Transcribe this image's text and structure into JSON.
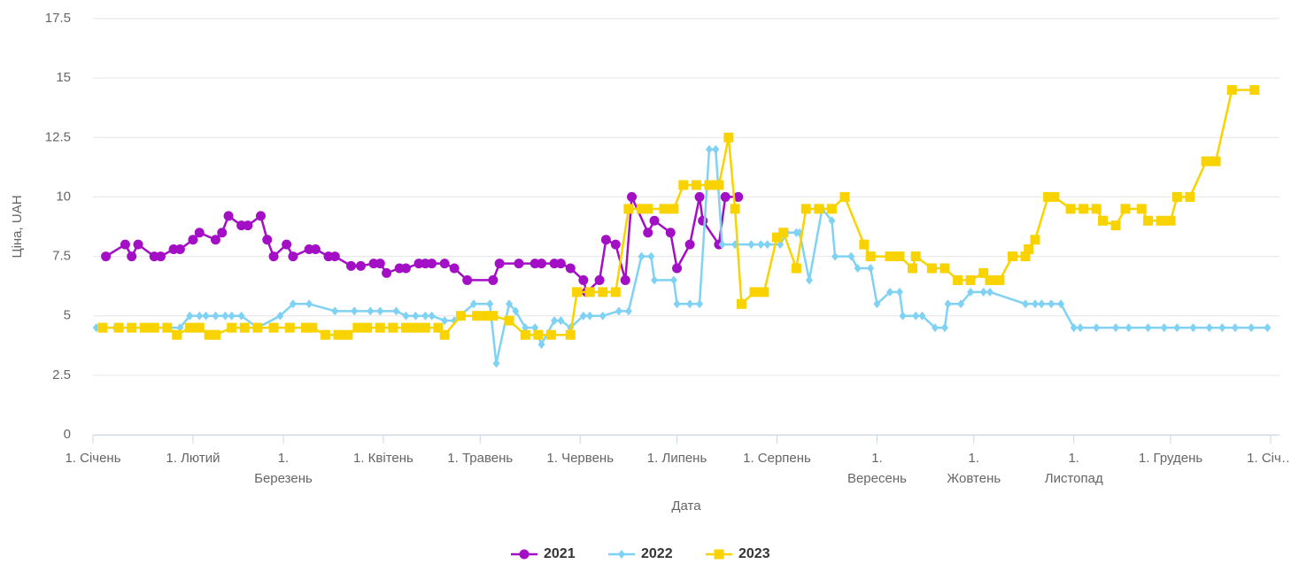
{
  "chart_data": {
    "type": "line",
    "y_label": "Ціна, UAH",
    "x_label": "Дата",
    "xlim": [
      0,
      365
    ],
    "ylim": [
      0,
      17.5
    ],
    "yticks": [
      0,
      2.5,
      5,
      7.5,
      10,
      12.5,
      15,
      17.5
    ],
    "xticks": [
      {
        "value": 0,
        "label": "1. Січень"
      },
      {
        "value": 31,
        "label": "1. Лютий"
      },
      {
        "value": 59,
        "label": "1.\nБерезень"
      },
      {
        "value": 90,
        "label": "1. Квітень"
      },
      {
        "value": 120,
        "label": "1. Травень"
      },
      {
        "value": 151,
        "label": "1. Червень"
      },
      {
        "value": 181,
        "label": "1. Липень"
      },
      {
        "value": 212,
        "label": "1. Серпень"
      },
      {
        "value": 243,
        "label": "1.\nВересень"
      },
      {
        "value": 273,
        "label": "1.\nЖовтень"
      },
      {
        "value": 304,
        "label": "1.\nЛистопад"
      },
      {
        "value": 334,
        "label": "1. Грудень"
      },
      {
        "value": 365,
        "label": "1. Січ…"
      }
    ],
    "grid": true,
    "legend": "bottom",
    "series": [
      {
        "name": "2021",
        "color": "#a30fc4",
        "marker": "circle",
        "x": [
          4,
          10,
          12,
          14,
          19,
          21,
          25,
          27,
          31,
          33,
          38,
          40,
          42,
          46,
          48,
          52,
          54,
          56,
          60,
          62,
          67,
          69,
          73,
          75,
          80,
          83,
          87,
          89,
          91,
          95,
          97,
          101,
          103,
          105,
          109,
          112,
          116,
          124,
          126,
          132,
          137,
          139,
          143,
          145,
          148,
          152,
          153,
          157,
          159,
          162,
          165,
          167,
          172,
          174,
          179,
          181,
          185,
          188,
          189,
          194,
          196,
          200
        ],
        "values": [
          7.5,
          8,
          7.5,
          8,
          7.5,
          7.5,
          7.8,
          7.8,
          8.2,
          8.5,
          8.2,
          8.5,
          9.2,
          8.8,
          8.8,
          9.2,
          8.2,
          7.5,
          8,
          7.5,
          7.8,
          7.8,
          7.5,
          7.5,
          7.1,
          7.1,
          7.2,
          7.2,
          6.8,
          7,
          7,
          7.2,
          7.2,
          7.2,
          7.2,
          7,
          6.5,
          6.5,
          7.2,
          7.2,
          7.2,
          7.2,
          7.2,
          7.2,
          7,
          6.5,
          6,
          6.5,
          8.2,
          8,
          6.5,
          10,
          8.5,
          9,
          8.5,
          7,
          8,
          10,
          9,
          8,
          10,
          10
        ]
      },
      {
        "name": "2022",
        "color": "#7fd2f4",
        "marker": "diamond",
        "x": [
          1,
          7,
          12,
          18,
          23,
          27,
          30,
          33,
          35,
          38,
          41,
          43,
          46,
          51,
          58,
          62,
          67,
          75,
          81,
          86,
          89,
          94,
          97,
          100,
          103,
          105,
          109,
          112,
          118,
          123,
          125,
          129,
          131,
          134,
          137,
          139,
          143,
          145,
          148,
          152,
          154,
          158,
          163,
          166,
          170,
          173,
          174,
          180,
          181,
          185,
          188,
          191,
          193,
          195,
          199,
          204,
          207,
          209,
          213,
          215,
          218,
          219,
          222,
          226,
          229,
          230,
          235,
          237,
          241,
          243,
          247,
          250,
          251,
          255,
          257,
          261,
          264,
          265,
          269,
          272,
          276,
          278,
          289,
          292,
          294,
          297,
          300,
          304,
          306,
          311,
          317,
          321,
          327,
          332,
          336,
          341,
          346,
          350,
          354,
          359,
          364
        ],
        "values": [
          4.5,
          4.5,
          4.5,
          4.5,
          4.5,
          4.5,
          5,
          5,
          5,
          5,
          5,
          5,
          5,
          4.5,
          5,
          5.5,
          5.5,
          5.2,
          5.2,
          5.2,
          5.2,
          5.2,
          5,
          5,
          5,
          5,
          4.8,
          4.8,
          5.5,
          5.5,
          3,
          5.5,
          5.2,
          4.5,
          4.5,
          3.8,
          4.8,
          4.8,
          4.5,
          5,
          5,
          5,
          5.2,
          5.2,
          7.5,
          7.5,
          6.5,
          6.5,
          5.5,
          5.5,
          5.5,
          12,
          12,
          8,
          8,
          8,
          8,
          8,
          8,
          8.5,
          8.5,
          8.5,
          6.5,
          9.5,
          9,
          7.5,
          7.5,
          7,
          7,
          5.5,
          6,
          6,
          5,
          5,
          5,
          4.5,
          4.5,
          5.5,
          5.5,
          6,
          6,
          6,
          5.5,
          5.5,
          5.5,
          5.5,
          5.5,
          4.5,
          4.5,
          4.5,
          4.5,
          4.5,
          4.5,
          4.5,
          4.5,
          4.5,
          4.5,
          4.5,
          4.5,
          4.5,
          4.5
        ]
      },
      {
        "name": "2023",
        "color": "#f9d300",
        "marker": "square",
        "x": [
          3,
          8,
          12,
          16,
          19,
          23,
          26,
          30,
          33,
          36,
          38,
          43,
          47,
          51,
          56,
          61,
          66,
          68,
          72,
          76,
          79,
          82,
          85,
          89,
          93,
          97,
          100,
          103,
          107,
          109,
          114,
          119,
          122,
          124,
          129,
          134,
          138,
          142,
          148,
          150,
          154,
          158,
          162,
          166,
          170,
          172,
          177,
          180,
          183,
          187,
          191,
          194,
          197,
          199,
          201,
          205,
          208,
          212,
          214,
          218,
          221,
          225,
          229,
          233,
          239,
          241,
          247,
          250,
          254,
          255,
          260,
          264,
          268,
          272,
          276,
          278,
          281,
          285,
          289,
          290,
          292,
          296,
          298,
          303,
          307,
          311,
          313,
          317,
          320,
          325,
          327,
          331,
          334,
          336,
          340,
          345,
          348,
          353,
          360
        ],
        "values": [
          4.5,
          4.5,
          4.5,
          4.5,
          4.5,
          4.5,
          4.2,
          4.5,
          4.5,
          4.2,
          4.2,
          4.5,
          4.5,
          4.5,
          4.5,
          4.5,
          4.5,
          4.5,
          4.2,
          4.2,
          4.2,
          4.5,
          4.5,
          4.5,
          4.5,
          4.5,
          4.5,
          4.5,
          4.5,
          4.2,
          5,
          5,
          5,
          5,
          4.8,
          4.2,
          4.2,
          4.2,
          4.2,
          6,
          6,
          6,
          6,
          9.5,
          9.5,
          9.5,
          9.5,
          9.5,
          10.5,
          10.5,
          10.5,
          10.5,
          12.5,
          9.5,
          5.5,
          6,
          6,
          8.3,
          8.5,
          7,
          9.5,
          9.5,
          9.5,
          10,
          8,
          7.5,
          7.5,
          7.5,
          7,
          7.5,
          7,
          7,
          6.5,
          6.5,
          6.8,
          6.5,
          6.5,
          7.5,
          7.5,
          7.8,
          8.2,
          10,
          10,
          9.5,
          9.5,
          9.5,
          9,
          8.8,
          9.5,
          9.5,
          9,
          9,
          9,
          10,
          10,
          11.5,
          11.5,
          14.5,
          14.5
        ]
      }
    ]
  }
}
